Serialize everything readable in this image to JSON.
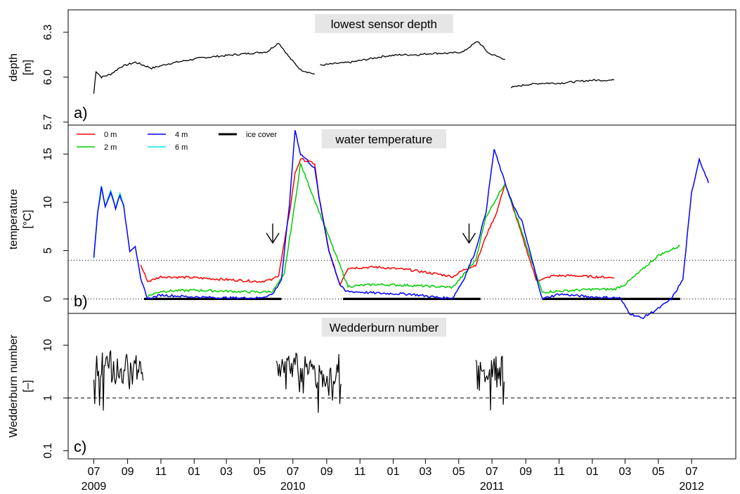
{
  "chart_data": [
    {
      "type": "line",
      "title": "lowest sensor depth",
      "panel_letter": "a)",
      "ylabel_lines": [
        "depth",
        "[m]"
      ],
      "ylim": [
        5.68,
        6.45
      ],
      "yticks": [
        5.7,
        6.0,
        6.3
      ],
      "ytick_labels": [
        "5.7",
        "6.0",
        "6.3"
      ],
      "series": [
        {
          "color": "#000000",
          "x": [
            "2009-07-01",
            "2009-07-05",
            "2009-07-15",
            "2009-08-01",
            "2009-08-20",
            "2009-09-15",
            "2009-10-15",
            "2009-11-15",
            "2009-12-15",
            "2010-01-15",
            "2010-02-15",
            "2010-03-15",
            "2010-04-15",
            "2010-05-15",
            "2010-05-25",
            "2010-06-05",
            "2010-06-25",
            "2010-07-15",
            "2010-08-10"
          ],
          "y": [
            5.89,
            6.04,
            6.0,
            6.02,
            6.07,
            6.1,
            6.06,
            6.09,
            6.11,
            6.13,
            6.14,
            6.15,
            6.16,
            6.17,
            6.2,
            6.23,
            6.13,
            6.05,
            6.02
          ]
        },
        {
          "color": "#000000",
          "x": [
            "2010-08-20",
            "2010-09-15",
            "2010-10-15",
            "2010-11-15",
            "2010-12-15",
            "2011-01-15",
            "2011-02-15",
            "2011-03-15",
            "2011-04-15",
            "2011-05-10",
            "2011-05-20",
            "2011-06-05",
            "2011-06-25",
            "2011-07-25"
          ],
          "y": [
            6.08,
            6.09,
            6.1,
            6.12,
            6.14,
            6.15,
            6.15,
            6.16,
            6.16,
            6.17,
            6.2,
            6.24,
            6.16,
            6.12
          ]
        },
        {
          "color": "#000000",
          "x": [
            "2011-08-05",
            "2011-09-01",
            "2011-10-01",
            "2011-11-01",
            "2011-12-01",
            "2012-01-01",
            "2012-02-10"
          ],
          "y": [
            5.93,
            5.95,
            5.96,
            5.96,
            5.97,
            5.98,
            5.98
          ]
        }
      ]
    },
    {
      "type": "line",
      "title": "water temperature",
      "panel_letter": "b)",
      "ylabel_lines": [
        "temperature",
        "[°C]"
      ],
      "ylim": [
        -1.5,
        18
      ],
      "yticks": [
        0,
        5,
        10,
        15
      ],
      "ytick_labels": [
        "0",
        "5",
        "10",
        "15"
      ],
      "reference_lines": [
        0,
        4
      ],
      "legend": [
        {
          "label": "0 m",
          "color": "#ff0000"
        },
        {
          "label": "2 m",
          "color": "#00cc00"
        },
        {
          "label": "4 m",
          "color": "#0000ff"
        },
        {
          "label": "6 m",
          "color": "#00e5ee"
        },
        {
          "label": "ice cover",
          "color": "#000000"
        }
      ],
      "series": [
        {
          "name": "6 m",
          "color": "#00e5ee",
          "x": [
            "2009-07-01",
            "2009-07-08",
            "2009-07-15",
            "2009-07-22",
            "2009-08-01",
            "2009-08-10",
            "2009-08-18",
            "2009-08-25"
          ],
          "y": [
            4.3,
            9.0,
            11.8,
            9.6,
            11.2,
            9.4,
            11.0,
            9.5
          ]
        },
        {
          "name": "0 m",
          "color": "#ff0000",
          "x": [
            "2009-09-25",
            "2009-10-08",
            "2009-11-01",
            "2010-01-01",
            "2010-03-01",
            "2010-05-01",
            "2010-05-25",
            "2010-06-05",
            "2010-06-25",
            "2010-07-05",
            "2010-07-15",
            "2010-08-10",
            "2010-08-18",
            "2010-09-05",
            "2010-09-25",
            "2010-10-10",
            "2010-12-01",
            "2011-02-01",
            "2011-04-01",
            "2011-04-20",
            "2011-05-10",
            "2011-06-01",
            "2011-06-20",
            "2011-07-10",
            "2011-07-25",
            "2011-09-20",
            "2011-10-01",
            "2011-10-20",
            "2011-12-01",
            "2012-01-01",
            "2012-02-10"
          ],
          "y": [
            3.5,
            1.8,
            2.3,
            2.2,
            2.0,
            1.8,
            2.0,
            2.5,
            9.0,
            13.0,
            14.5,
            14.0,
            10.5,
            5.0,
            1.5,
            3.2,
            3.3,
            3.0,
            2.5,
            2.3,
            3.0,
            3.5,
            6.5,
            9.0,
            12.0,
            2.0,
            2.0,
            2.4,
            2.4,
            2.3,
            2.2
          ]
        },
        {
          "name": "2 m",
          "color": "#00cc00",
          "x": [
            "2009-10-08",
            "2009-11-01",
            "2010-01-01",
            "2010-03-01",
            "2010-05-01",
            "2010-05-25",
            "2010-06-15",
            "2010-07-05",
            "2010-07-15",
            "2010-10-10",
            "2010-12-01",
            "2011-02-01",
            "2011-04-20",
            "2011-05-10",
            "2011-06-01",
            "2011-06-20",
            "2011-07-25",
            "2011-10-01",
            "2011-12-01",
            "2012-01-01",
            "2012-02-10",
            "2012-03-01",
            "2012-04-01",
            "2012-05-01",
            "2012-06-10"
          ],
          "y": [
            0.3,
            0.8,
            0.9,
            0.8,
            0.7,
            0.8,
            2.5,
            10.0,
            14.0,
            1.3,
            1.5,
            1.4,
            1.2,
            2.5,
            4.0,
            8.5,
            12.0,
            0.7,
            0.9,
            1.0,
            1.0,
            1.5,
            3.0,
            4.5,
            5.5
          ]
        },
        {
          "name": "4 m",
          "color": "#0000ff",
          "x": [
            "2009-07-01",
            "2009-07-08",
            "2009-07-15",
            "2009-07-22",
            "2009-08-01",
            "2009-08-10",
            "2009-08-18",
            "2009-08-25",
            "2009-09-05",
            "2009-09-15",
            "2009-09-25",
            "2009-10-08",
            "2009-11-01",
            "2010-01-01",
            "2010-03-01",
            "2010-05-01",
            "2010-05-25",
            "2010-06-10",
            "2010-06-25",
            "2010-07-05",
            "2010-07-15",
            "2010-07-25",
            "2010-08-10",
            "2010-08-18",
            "2010-09-05",
            "2010-09-25",
            "2010-10-05",
            "2010-12-01",
            "2011-02-01",
            "2011-04-01",
            "2011-04-20",
            "2011-05-10",
            "2011-06-01",
            "2011-06-20",
            "2011-07-05",
            "2011-07-25",
            "2011-08-10",
            "2011-08-25",
            "2011-09-15",
            "2011-10-01",
            "2011-11-01",
            "2012-01-01",
            "2012-02-20",
            "2012-03-10",
            "2012-04-01",
            "2012-05-01",
            "2012-05-25",
            "2012-06-15",
            "2012-07-01",
            "2012-07-15",
            "2012-08-01"
          ],
          "y": [
            4.3,
            9.0,
            11.5,
            9.6,
            11.0,
            9.4,
            10.8,
            9.5,
            5.0,
            5.5,
            2.0,
            0.0,
            0.4,
            0.2,
            0.1,
            0.1,
            0.5,
            2.0,
            10.0,
            17.5,
            15.0,
            14.5,
            13.5,
            10.5,
            5.0,
            1.5,
            0.8,
            0.6,
            0.5,
            0.1,
            0.1,
            2.0,
            5.0,
            9.0,
            15.5,
            12.0,
            9.5,
            8.0,
            3.5,
            0.0,
            0.5,
            0.2,
            0.1,
            -1.5,
            -2.0,
            -1.0,
            0.0,
            2.0,
            11.0,
            14.5,
            12.0
          ]
        }
      ],
      "ice_cover": [
        {
          "start": "2009-10-01",
          "end": "2010-06-10"
        },
        {
          "start": "2010-10-01",
          "end": "2011-06-10"
        },
        {
          "start": "2011-10-01",
          "end": "2012-06-10"
        }
      ],
      "annotations": [
        {
          "type": "arrow-down",
          "x": "2010-05-25",
          "y_from": 7.8,
          "y_to": 5.8
        },
        {
          "type": "arrow-down",
          "x": "2011-05-20",
          "y_from": 7.8,
          "y_to": 5.8
        }
      ]
    },
    {
      "type": "line",
      "title": "Wedderburn number",
      "panel_letter": "c)",
      "ylabel_lines": [
        "Wedderburn number",
        "[–]"
      ],
      "yscale": "log",
      "ylim": [
        0.07,
        40
      ],
      "yticks": [
        0.1,
        1,
        10
      ],
      "ytick_labels": [
        "0.1",
        "1",
        "10"
      ],
      "reference_lines": [
        1
      ],
      "series": [
        {
          "color": "#000000",
          "x": [
            "2009-07-01",
            "2009-07-15",
            "2009-08-01",
            "2009-08-15",
            "2009-09-01",
            "2009-09-15",
            "2009-10-01"
          ],
          "y": [
            3,
            4,
            3.5,
            3,
            3.2,
            3.5,
            3
          ],
          "y_min": [
            0.45,
            0.5,
            0.35,
            0.5,
            0.5,
            0.55,
            0.38
          ],
          "y_max": [
            9,
            9,
            9,
            9,
            9,
            9,
            8
          ]
        },
        {
          "color": "#000000",
          "x": [
            "2010-06-01",
            "2010-06-20",
            "2010-07-10",
            "2010-07-30",
            "2010-08-15",
            "2010-08-31",
            "2010-09-15",
            "2010-09-30"
          ],
          "y": [
            3,
            3.5,
            3,
            3.2,
            3,
            2.5,
            3,
            3
          ],
          "y_min": [
            1.5,
            1.4,
            1.3,
            0.7,
            0.5,
            0.15,
            0.3,
            0.6
          ],
          "y_max": [
            6,
            7,
            8,
            7,
            7,
            8,
            9,
            7
          ]
        },
        {
          "color": "#000000",
          "x": [
            "2011-06-01",
            "2011-06-20",
            "2011-07-10",
            "2011-07-25"
          ],
          "y": [
            3,
            2.5,
            3,
            3
          ],
          "y_min": [
            1.2,
            0.7,
            0.27,
            0.5
          ],
          "y_max": [
            8,
            7,
            9,
            11
          ]
        }
      ]
    }
  ],
  "x_axis": {
    "range": [
      "2009-05-15",
      "2012-09-20"
    ],
    "month_ticks": [
      {
        "date": "2009-07-01",
        "label": "07"
      },
      {
        "date": "2009-09-01",
        "label": "09"
      },
      {
        "date": "2009-11-01",
        "label": "11"
      },
      {
        "date": "2010-01-01",
        "label": "01"
      },
      {
        "date": "2010-03-01",
        "label": "03"
      },
      {
        "date": "2010-05-01",
        "label": "05"
      },
      {
        "date": "2010-07-01",
        "label": "07"
      },
      {
        "date": "2010-09-01",
        "label": "09"
      },
      {
        "date": "2010-11-01",
        "label": "11"
      },
      {
        "date": "2011-01-01",
        "label": "01"
      },
      {
        "date": "2011-03-01",
        "label": "03"
      },
      {
        "date": "2011-05-01",
        "label": "05"
      },
      {
        "date": "2011-07-01",
        "label": "07"
      },
      {
        "date": "2011-09-01",
        "label": "09"
      },
      {
        "date": "2011-11-01",
        "label": "11"
      },
      {
        "date": "2012-01-01",
        "label": "01"
      },
      {
        "date": "2012-03-01",
        "label": "03"
      },
      {
        "date": "2012-05-01",
        "label": "05"
      },
      {
        "date": "2012-07-01",
        "label": "07"
      }
    ],
    "year_labels": [
      {
        "date": "2009-07-01",
        "label": "2009"
      },
      {
        "date": "2010-07-01",
        "label": "2010"
      },
      {
        "date": "2011-07-01",
        "label": "2011"
      },
      {
        "date": "2012-07-01",
        "label": "2012"
      }
    ]
  }
}
